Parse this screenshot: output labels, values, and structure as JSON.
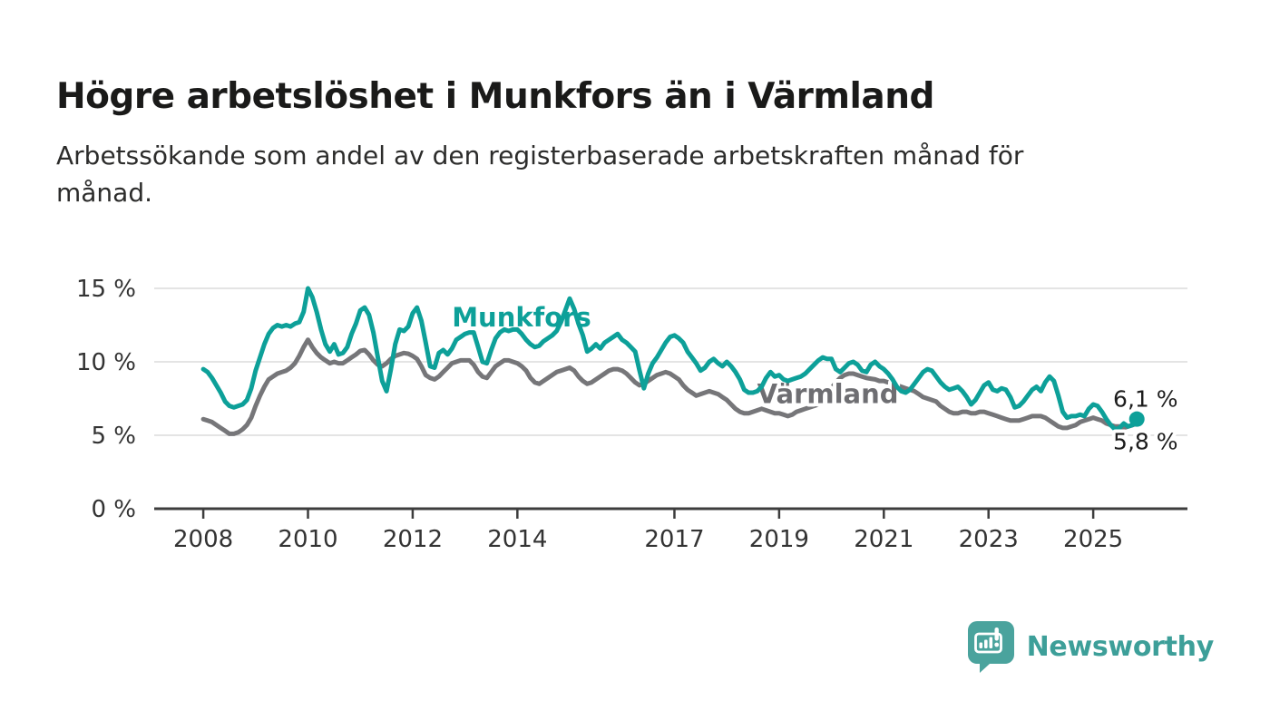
{
  "header": {
    "title": "Högre arbetslöshet i Munkfors än i Värmland",
    "subtitle_line1": "Arbetssökande som andel av den registerbaserade arbetskraften månad för",
    "subtitle_line2": "månad."
  },
  "footer": {
    "brand": "Newsworthy",
    "logo_icon": "bar-chart-speech-bubble-icon"
  },
  "colors": {
    "munkfors": "#0da099",
    "varmland": "#767679",
    "varmland_label": "#6e6e72",
    "grid": "#dcdcdc",
    "axis": "#3d3d3d",
    "tick_text": "#333333",
    "end_label_text": "#1d1d1d",
    "brand_teal": "#4aa39d"
  },
  "chart_data": {
    "type": "line",
    "title": "Högre arbetslöshet i Munkfors än i Värmland",
    "xlabel": "",
    "ylabel": "",
    "frequency": "monthly",
    "x_start_year": 2008,
    "x_start_month": 1,
    "x_end_year": 2025,
    "x_end_month": 11,
    "xlim": [
      2007.08,
      2026.8
    ],
    "ylim": [
      0,
      15
    ],
    "grid": "horizontal",
    "legend_position": "inline-labels",
    "yticks": [
      {
        "value": 0,
        "label": "0 %"
      },
      {
        "value": 5,
        "label": "5 %"
      },
      {
        "value": 10,
        "label": "10 %"
      },
      {
        "value": 15,
        "label": "15 %"
      }
    ],
    "xticks": [
      {
        "year": 2008,
        "label": "2008"
      },
      {
        "year": 2010,
        "label": "2010"
      },
      {
        "year": 2012,
        "label": "2012"
      },
      {
        "year": 2014,
        "label": "2014"
      },
      {
        "year": 2017,
        "label": "2017"
      },
      {
        "year": 2019,
        "label": "2019"
      },
      {
        "year": 2021,
        "label": "2021"
      },
      {
        "year": 2023,
        "label": "2023"
      },
      {
        "year": 2025,
        "label": "2025"
      }
    ],
    "series": [
      {
        "name": "Värmland",
        "color_key": "varmland",
        "final_value_label": "5,8 %",
        "values": [
          6.1,
          6.0,
          5.9,
          5.7,
          5.5,
          5.3,
          5.1,
          5.1,
          5.2,
          5.4,
          5.7,
          6.2,
          7.0,
          7.7,
          8.3,
          8.8,
          9.0,
          9.2,
          9.3,
          9.4,
          9.6,
          9.9,
          10.4,
          11.0,
          11.5,
          11.0,
          10.6,
          10.3,
          10.1,
          9.9,
          10.0,
          9.9,
          9.9,
          10.1,
          10.3,
          10.5,
          10.75,
          10.8,
          10.5,
          10.1,
          9.8,
          9.7,
          9.9,
          10.2,
          10.4,
          10.5,
          10.6,
          10.55,
          10.4,
          10.2,
          9.7,
          9.1,
          8.9,
          8.8,
          9.0,
          9.3,
          9.6,
          9.9,
          10.0,
          10.1,
          10.1,
          10.1,
          9.8,
          9.3,
          9.0,
          8.9,
          9.3,
          9.7,
          9.9,
          10.1,
          10.1,
          10.0,
          9.9,
          9.7,
          9.4,
          8.9,
          8.6,
          8.5,
          8.7,
          8.9,
          9.1,
          9.3,
          9.4,
          9.5,
          9.6,
          9.4,
          9.0,
          8.7,
          8.5,
          8.6,
          8.8,
          9.0,
          9.2,
          9.4,
          9.5,
          9.5,
          9.4,
          9.2,
          8.9,
          8.6,
          8.4,
          8.5,
          8.7,
          8.9,
          9.1,
          9.2,
          9.3,
          9.2,
          9.0,
          8.8,
          8.4,
          8.1,
          7.9,
          7.7,
          7.8,
          7.9,
          8.0,
          7.9,
          7.8,
          7.6,
          7.4,
          7.1,
          6.8,
          6.6,
          6.5,
          6.5,
          6.6,
          6.7,
          6.8,
          6.7,
          6.6,
          6.5,
          6.5,
          6.4,
          6.3,
          6.4,
          6.6,
          6.7,
          6.8,
          6.9,
          7.0,
          7.1,
          7.3,
          7.7,
          8.2,
          8.6,
          8.9,
          9.1,
          9.2,
          9.2,
          9.1,
          9.0,
          8.9,
          8.85,
          8.8,
          8.7,
          8.7,
          8.6,
          8.5,
          8.4,
          8.3,
          8.2,
          8.1,
          8.0,
          7.8,
          7.6,
          7.5,
          7.4,
          7.3,
          7.0,
          6.8,
          6.6,
          6.5,
          6.5,
          6.6,
          6.6,
          6.5,
          6.5,
          6.6,
          6.6,
          6.5,
          6.4,
          6.3,
          6.2,
          6.1,
          6.0,
          6.0,
          6.0,
          6.1,
          6.2,
          6.3,
          6.3,
          6.3,
          6.2,
          6.0,
          5.8,
          5.6,
          5.5,
          5.5,
          5.6,
          5.7,
          5.9,
          6.0,
          6.1,
          6.2,
          6.1,
          6.0,
          5.8,
          5.7,
          5.6,
          5.6,
          5.5,
          5.6,
          5.7,
          5.8
        ]
      },
      {
        "name": "Munkfors",
        "color_key": "munkfors",
        "final_value_label": "6,1 %",
        "end_dot": true,
        "values": [
          9.5,
          9.3,
          8.9,
          8.4,
          7.9,
          7.3,
          7.0,
          6.9,
          7.0,
          7.1,
          7.4,
          8.2,
          9.4,
          10.3,
          11.2,
          11.9,
          12.3,
          12.5,
          12.4,
          12.5,
          12.4,
          12.6,
          12.7,
          13.4,
          15.0,
          14.4,
          13.4,
          12.2,
          11.2,
          10.7,
          11.2,
          10.5,
          10.6,
          11.0,
          11.9,
          12.6,
          13.5,
          13.7,
          13.2,
          12.0,
          10.3,
          8.7,
          8.0,
          9.5,
          11.2,
          12.2,
          12.1,
          12.4,
          13.3,
          13.7,
          12.8,
          11.3,
          9.7,
          9.6,
          10.6,
          10.8,
          10.5,
          10.9,
          11.5,
          11.7,
          11.9,
          12.0,
          12.0,
          11.0,
          10.0,
          9.9,
          10.8,
          11.6,
          12.0,
          12.2,
          12.1,
          12.2,
          12.2,
          11.9,
          11.5,
          11.2,
          11.0,
          11.1,
          11.4,
          11.6,
          11.8,
          12.1,
          12.7,
          13.5,
          14.3,
          13.6,
          12.6,
          11.8,
          10.7,
          10.9,
          11.2,
          10.9,
          11.3,
          11.5,
          11.7,
          11.9,
          11.5,
          11.3,
          11.0,
          10.7,
          9.4,
          8.2,
          9.2,
          9.9,
          10.3,
          10.8,
          11.3,
          11.7,
          11.8,
          11.6,
          11.3,
          10.7,
          10.3,
          9.9,
          9.4,
          9.6,
          10.0,
          10.2,
          9.9,
          9.7,
          10.0,
          9.7,
          9.3,
          8.8,
          8.1,
          7.9,
          7.9,
          8.0,
          8.3,
          8.9,
          9.3,
          9.0,
          9.1,
          8.8,
          8.7,
          8.8,
          8.9,
          9.0,
          9.2,
          9.5,
          9.8,
          10.1,
          10.3,
          10.2,
          10.2,
          9.5,
          9.3,
          9.6,
          9.9,
          10.0,
          9.8,
          9.4,
          9.3,
          9.8,
          10.0,
          9.7,
          9.5,
          9.2,
          8.8,
          8.3,
          8.0,
          7.9,
          8.1,
          8.5,
          8.9,
          9.3,
          9.5,
          9.4,
          9.0,
          8.6,
          8.3,
          8.1,
          8.2,
          8.3,
          8.0,
          7.6,
          7.1,
          7.4,
          7.9,
          8.4,
          8.6,
          8.1,
          8.0,
          8.2,
          8.1,
          7.6,
          6.9,
          7.0,
          7.3,
          7.7,
          8.1,
          8.3,
          8.0,
          8.6,
          9.0,
          8.7,
          7.7,
          6.6,
          6.2,
          6.3,
          6.3,
          6.4,
          6.3,
          6.8,
          7.1,
          7.0,
          6.6,
          6.1,
          5.7,
          5.4,
          5.5,
          5.8,
          5.6,
          5.7,
          6.1
        ]
      }
    ],
    "annotations": [
      {
        "id": "munkfors-series-label",
        "kind": "series",
        "text": "Munkfors",
        "year": 2012.75,
        "value": 12.42,
        "color_key": "munkfors"
      },
      {
        "id": "varmland-series-label",
        "kind": "series",
        "text": "Värmland",
        "year": 2018.58,
        "value": 7.2,
        "color_key": "varmland_label"
      },
      {
        "id": "munkfors-end-label",
        "kind": "end",
        "text": "6,1 %",
        "year": 2025.38,
        "value": 6.95,
        "color_key": "end_label_text"
      },
      {
        "id": "varmland-end-label",
        "kind": "end",
        "text": "5,8 %",
        "year": 2025.38,
        "value": 4.05,
        "color_key": "end_label_text"
      }
    ]
  }
}
